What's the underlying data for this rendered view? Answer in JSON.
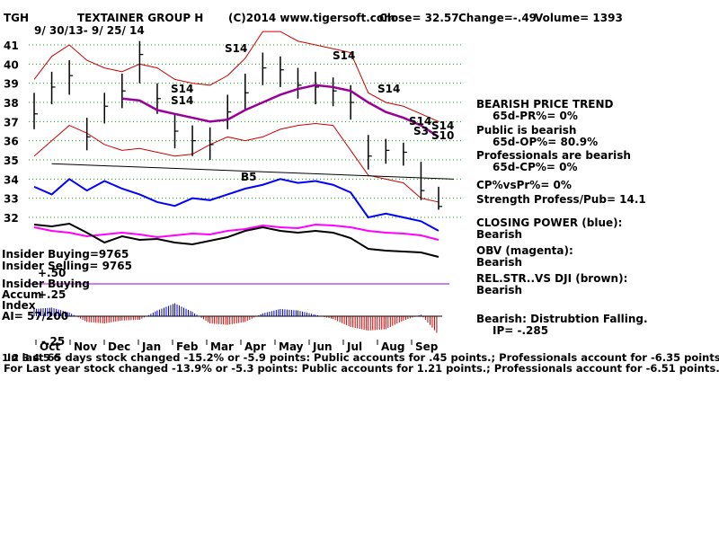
{
  "header": {
    "symbol": "TGH",
    "company": "TEXTAINER GROUP H",
    "copyright": "(C)2014 www.tigersoft.com",
    "close": "Close=  32.57",
    "change": "Change=-.49",
    "volume": "Volume= 1393",
    "date_range": "9/ 30/13-  9/ 25/ 14"
  },
  "right_panel": [
    {
      "text": "BEARISH PRICE TREND",
      "indent": false
    },
    {
      "text": "65d-PR%= 0%",
      "indent": true
    },
    {
      "text": "Public is bearish",
      "indent": false
    },
    {
      "text": "65d-OP%= 80.9%",
      "indent": true
    },
    {
      "text": "Professionals are bearish",
      "indent": false
    },
    {
      "text": "65d-CP%= 0%",
      "indent": true
    },
    {
      "text": "CP%vsPr%=  0%",
      "indent": false
    },
    {
      "text": "Strength Profess/Pub= 14.1",
      "indent": false
    },
    {
      "text": "CLOSING POWER (blue):",
      "indent": false
    },
    {
      "text": "Bearish",
      "indent": false
    },
    {
      "text": "OBV (magenta):",
      "indent": false
    },
    {
      "text": "Bearish",
      "indent": false
    },
    {
      "text": "REL.STR..VS DJI (brown):",
      "indent": false
    },
    {
      "text": "Bearish",
      "indent": false
    },
    {
      "text": "Bearish: Distrubtion Falling.",
      "indent": false
    },
    {
      "text": "IP= -.285",
      "indent": true
    }
  ],
  "left_labels": {
    "insider_buying": "Insider Buying=9765",
    "insider_selling": "Insider Selling= 9765",
    "plus50": "+.50",
    "insider_buying2": "Insider Buying",
    "accum": "Accum",
    "plus25": "+.25",
    "index": "Index",
    "ai": "AI= 57/200",
    "minus25": "-.25",
    "overlay": "1 2 3 4 5 6"
  },
  "footer": {
    "line1": "In last 65 days stock changed -15.2% or -5.9 points:  Public accounts for  .45 points.;  Professionals account for -6.35 points.",
    "line2": "For Last year stock changed -13.9% or -5.3 points:  Public accounts for  1.21 points.;  Professionals account for -6.51 points."
  },
  "signals": [
    "S14",
    "S14",
    "S14",
    "S14",
    "B5",
    "S14",
    "S14",
    "S14",
    "S3",
    "S10"
  ],
  "colors": {
    "price": "#000000",
    "bands": "#cc0000",
    "moving_average": "#990099",
    "closing_power": "#0000ff",
    "obv": "#ff00ff",
    "rel_str": "#000000",
    "accum_pos": "#0000cc",
    "accum_neg": "#cc0000",
    "grid": "#00aa00"
  },
  "chart_data": {
    "type": "line",
    "title": "TEXTAINER GROUP H",
    "x_labels": [
      "Oct",
      "Nov",
      "Dec",
      "Jan",
      "Feb",
      "Mar",
      "Apr",
      "May",
      "Jun",
      "Jul",
      "Aug",
      "Sep"
    ],
    "y_ticks": [
      32,
      33,
      34,
      35,
      36,
      37,
      38,
      39,
      40,
      41
    ],
    "ylim": [
      31.5,
      42
    ],
    "price_close": [
      37.4,
      38.8,
      39.4,
      36.2,
      37.8,
      38.6,
      40.5,
      38.2,
      36.5,
      36.0,
      35.8,
      37.5,
      38.5,
      39.8,
      39.7,
      38.9,
      38.8,
      38.6,
      38.0,
      35.2,
      35.5,
      35.4,
      33.4,
      32.57
    ],
    "price_high": [
      38.5,
      39.6,
      40.2,
      37.2,
      38.5,
      39.5,
      41.2,
      39.0,
      37.4,
      36.8,
      36.7,
      38.4,
      39.5,
      40.6,
      40.4,
      39.8,
      39.6,
      39.3,
      38.9,
      36.3,
      36.1,
      35.9,
      34.9,
      33.6
    ],
    "price_low": [
      36.6,
      37.9,
      38.4,
      35.5,
      36.9,
      37.7,
      39.0,
      37.4,
      35.6,
      35.2,
      35.0,
      36.6,
      37.6,
      38.9,
      38.8,
      38.2,
      37.9,
      37.8,
      37.1,
      34.5,
      34.8,
      34.7,
      32.9,
      32.4
    ],
    "moving_average": [
      null,
      null,
      null,
      null,
      null,
      38.2,
      38.1,
      37.6,
      37.4,
      37.2,
      37.0,
      37.1,
      37.6,
      38.0,
      38.4,
      38.7,
      38.9,
      38.8,
      38.6,
      38.0,
      37.5,
      37.2,
      36.8,
      36.2
    ],
    "band_upper": [
      39.2,
      40.4,
      41.0,
      40.2,
      39.8,
      39.6,
      40.0,
      39.8,
      39.2,
      39.0,
      38.9,
      39.4,
      40.3,
      41.7,
      41.7,
      41.2,
      41.0,
      40.8,
      40.6,
      38.5,
      38.0,
      37.8,
      37.4,
      37.0
    ],
    "band_lower": [
      35.2,
      36.0,
      36.8,
      36.4,
      35.8,
      35.5,
      35.6,
      35.4,
      35.2,
      35.3,
      35.8,
      36.2,
      36.0,
      36.2,
      36.6,
      36.8,
      36.9,
      36.8,
      35.5,
      34.2,
      34.0,
      33.8,
      33.0,
      32.8
    ],
    "closing_power": [
      33.6,
      33.2,
      34.0,
      33.4,
      33.9,
      33.5,
      33.2,
      32.8,
      32.6,
      33.0,
      32.9,
      33.2,
      33.5,
      33.7,
      34.0,
      33.8,
      33.9,
      33.7,
      33.3,
      32.0,
      32.2,
      32.0,
      31.8,
      31.3
    ],
    "obv": [
      30.2,
      29.8,
      29.6,
      29.2,
      29.4,
      29.6,
      29.4,
      29.1,
      29.3,
      29.5,
      29.4,
      29.8,
      30.0,
      30.4,
      30.2,
      30.1,
      30.5,
      30.4,
      30.2,
      29.8,
      29.6,
      29.5,
      29.3,
      28.8
    ],
    "rel_str": [
      30.5,
      30.3,
      30.6,
      29.6,
      28.5,
      29.2,
      28.8,
      28.9,
      28.5,
      28.3,
      28.7,
      29.1,
      29.8,
      30.2,
      29.8,
      29.6,
      29.8,
      29.6,
      29.0,
      27.8,
      27.6,
      27.5,
      27.4,
      26.9
    ],
    "support_line": [
      34.8,
      34.0
    ],
    "accum_index": [
      0.1,
      0.12,
      0.05,
      -0.08,
      -0.1,
      -0.06,
      -0.05,
      0.08,
      0.18,
      0.06,
      -0.1,
      -0.12,
      -0.08,
      0.04,
      0.1,
      0.08,
      0.02,
      -0.04,
      -0.15,
      -0.2,
      -0.18,
      -0.06,
      0.02,
      -0.26
    ]
  }
}
